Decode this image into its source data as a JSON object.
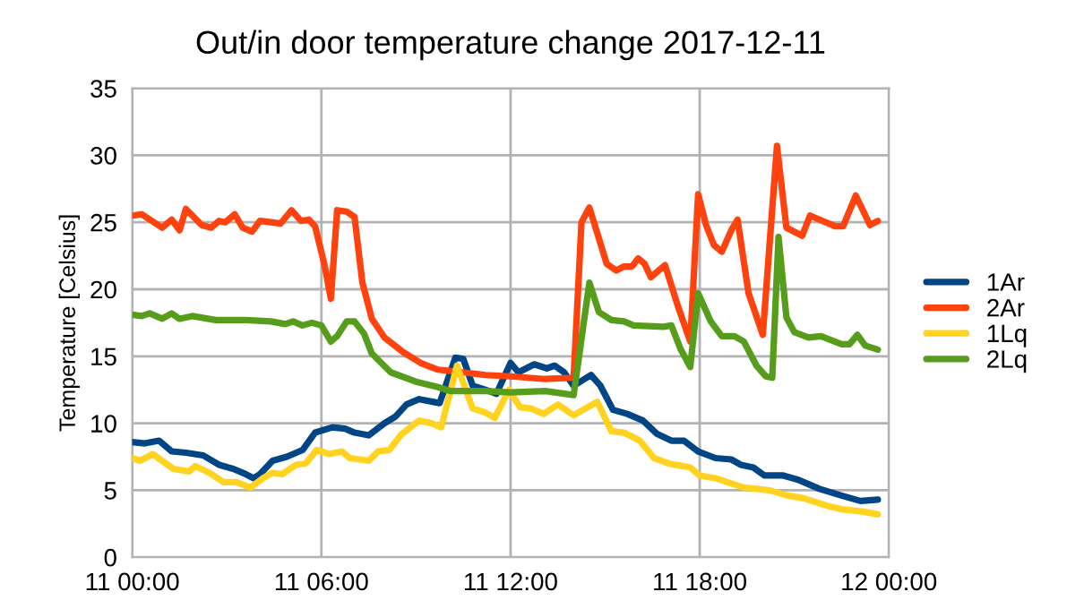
{
  "chart_data": {
    "type": "line",
    "title": "Out/in door temperature change 2017-12-11",
    "ylabel": "Temperature [Celsius]",
    "xlim": [
      "2017-12-11T00:00",
      "2017-12-12T00:00"
    ],
    "xticks": [
      {
        "value": "2017-12-11T00:00",
        "label": "11 00:00"
      },
      {
        "value": "2017-12-11T06:00",
        "label": "11 06:00"
      },
      {
        "value": "2017-12-11T12:00",
        "label": "11 12:00"
      },
      {
        "value": "2017-12-11T18:00",
        "label": "11 18:00"
      },
      {
        "value": "2017-12-12T00:00",
        "label": "12 00:00"
      }
    ],
    "ylim": [
      0,
      35
    ],
    "yticks": [
      0,
      5,
      10,
      15,
      20,
      25,
      30,
      35
    ],
    "grid": true,
    "legend": "right",
    "marker": "none",
    "line_style": "solid",
    "series": [
      {
        "name": "1Ar",
        "color": "#004586",
        "x": [
          "2017-12-11T00:00",
          "2017-12-11T00:24",
          "2017-12-11T00:51",
          "2017-12-11T01:15",
          "2017-12-11T01:42",
          "2017-12-11T02:15",
          "2017-12-11T02:45",
          "2017-12-11T03:12",
          "2017-12-11T03:36",
          "2017-12-11T03:51",
          "2017-12-11T04:03",
          "2017-12-11T04:27",
          "2017-12-11T04:54",
          "2017-12-11T05:24",
          "2017-12-11T05:48",
          "2017-12-11T06:21",
          "2017-12-11T06:45",
          "2017-12-11T07:03",
          "2017-12-11T07:30",
          "2017-12-11T08:00",
          "2017-12-11T08:21",
          "2017-12-11T08:42",
          "2017-12-11T09:06",
          "2017-12-11T09:45",
          "2017-12-11T10:15",
          "2017-12-11T10:30",
          "2017-12-11T10:48",
          "2017-12-11T11:12",
          "2017-12-11T11:33",
          "2017-12-11T12:00",
          "2017-12-11T12:15",
          "2017-12-11T12:45",
          "2017-12-11T13:09",
          "2017-12-11T13:24",
          "2017-12-11T13:42",
          "2017-12-11T14:00",
          "2017-12-11T14:33",
          "2017-12-11T14:51",
          "2017-12-11T15:15",
          "2017-12-11T15:42",
          "2017-12-11T16:12",
          "2017-12-11T16:39",
          "2017-12-11T17:06",
          "2017-12-11T17:30",
          "2017-12-11T17:57",
          "2017-12-11T18:30",
          "2017-12-11T19:00",
          "2017-12-11T19:18",
          "2017-12-11T19:42",
          "2017-12-11T20:03",
          "2017-12-11T20:39",
          "2017-12-11T21:06",
          "2017-12-11T21:48",
          "2017-12-11T22:30",
          "2017-12-11T23:06",
          "2017-12-11T23:39"
        ],
        "values": [
          8.6,
          8.5,
          8.7,
          7.9,
          7.8,
          7.6,
          6.9,
          6.6,
          6.2,
          5.9,
          6.2,
          7.2,
          7.5,
          8.0,
          9.3,
          9.7,
          9.6,
          9.3,
          9.1,
          10.0,
          10.5,
          11.4,
          11.8,
          11.5,
          14.9,
          14.8,
          12.8,
          12.5,
          12.2,
          14.5,
          13.8,
          14.4,
          14.1,
          14.3,
          13.8,
          12.8,
          13.6,
          12.8,
          11.0,
          10.7,
          10.2,
          9.2,
          8.7,
          8.7,
          7.9,
          7.4,
          7.3,
          6.9,
          6.7,
          6.1,
          6.1,
          5.8,
          5.1,
          4.6,
          4.2,
          4.3
        ]
      },
      {
        "name": "2Ar",
        "color": "#ff420e",
        "x": [
          "2017-12-11T00:00",
          "2017-12-11T00:18",
          "2017-12-11T00:57",
          "2017-12-11T01:15",
          "2017-12-11T01:30",
          "2017-12-11T01:42",
          "2017-12-11T02:12",
          "2017-12-11T02:30",
          "2017-12-11T02:45",
          "2017-12-11T02:57",
          "2017-12-11T03:15",
          "2017-12-11T03:30",
          "2017-12-11T03:48",
          "2017-12-11T04:03",
          "2017-12-11T04:24",
          "2017-12-11T04:42",
          "2017-12-11T05:03",
          "2017-12-11T05:21",
          "2017-12-11T05:36",
          "2017-12-11T05:48",
          "2017-12-11T06:06",
          "2017-12-11T06:18",
          "2017-12-11T06:30",
          "2017-12-11T06:48",
          "2017-12-11T07:03",
          "2017-12-11T07:18",
          "2017-12-11T07:36",
          "2017-12-11T08:00",
          "2017-12-11T08:36",
          "2017-12-11T09:09",
          "2017-12-11T09:42",
          "2017-12-11T10:30",
          "2017-12-11T11:12",
          "2017-12-11T12:00",
          "2017-12-11T13:06",
          "2017-12-11T14:00",
          "2017-12-11T14:15",
          "2017-12-11T14:30",
          "2017-12-11T15:03",
          "2017-12-11T15:21",
          "2017-12-11T15:36",
          "2017-12-11T15:51",
          "2017-12-11T16:03",
          "2017-12-11T16:15",
          "2017-12-11T16:27",
          "2017-12-11T16:54",
          "2017-12-11T17:18",
          "2017-12-11T17:42",
          "2017-12-11T17:57",
          "2017-12-11T18:12",
          "2017-12-11T18:27",
          "2017-12-11T18:42",
          "2017-12-11T19:00",
          "2017-12-11T19:12",
          "2017-12-11T19:33",
          "2017-12-11T20:00",
          "2017-12-11T20:27",
          "2017-12-11T20:45",
          "2017-12-11T21:15",
          "2017-12-11T21:30",
          "2017-12-11T21:54",
          "2017-12-11T22:18",
          "2017-12-11T22:33",
          "2017-12-11T22:57",
          "2017-12-11T23:24",
          "2017-12-11T23:39"
        ],
        "values": [
          25.5,
          25.6,
          24.6,
          25.2,
          24.4,
          26.0,
          24.8,
          24.6,
          25.1,
          25.0,
          25.6,
          24.6,
          24.3,
          25.1,
          25.0,
          24.9,
          25.9,
          25.1,
          25.2,
          24.7,
          21.8,
          19.3,
          25.9,
          25.8,
          25.4,
          20.5,
          17.8,
          16.4,
          15.3,
          14.5,
          14.0,
          13.8,
          13.6,
          13.5,
          13.3,
          13.4,
          25.0,
          26.1,
          21.9,
          21.4,
          21.7,
          21.7,
          22.3,
          21.9,
          20.9,
          21.8,
          18.8,
          16.1,
          27.1,
          24.8,
          23.3,
          22.8,
          24.4,
          25.2,
          19.7,
          16.6,
          30.7,
          24.6,
          24.0,
          25.5,
          25.1,
          24.7,
          24.7,
          27.0,
          24.8,
          25.1
        ]
      },
      {
        "name": "1Lq",
        "color": "#ffd320",
        "x": [
          "2017-12-11T00:00",
          "2017-12-11T00:15",
          "2017-12-11T00:39",
          "2017-12-11T00:57",
          "2017-12-11T01:18",
          "2017-12-11T01:48",
          "2017-12-11T02:00",
          "2017-12-11T02:27",
          "2017-12-11T02:54",
          "2017-12-11T03:18",
          "2017-12-11T03:45",
          "2017-12-11T04:09",
          "2017-12-11T04:27",
          "2017-12-11T04:45",
          "2017-12-11T05:12",
          "2017-12-11T05:30",
          "2017-12-11T05:51",
          "2017-12-11T06:15",
          "2017-12-11T06:39",
          "2017-12-11T06:54",
          "2017-12-11T07:30",
          "2017-12-11T07:48",
          "2017-12-11T08:09",
          "2017-12-11T08:33",
          "2017-12-11T09:06",
          "2017-12-11T09:30",
          "2017-12-11T09:48",
          "2017-12-11T10:18",
          "2017-12-11T10:48",
          "2017-12-11T11:12",
          "2017-12-11T11:30",
          "2017-12-11T11:57",
          "2017-12-11T12:18",
          "2017-12-11T12:39",
          "2017-12-11T13:03",
          "2017-12-11T13:30",
          "2017-12-11T14:00",
          "2017-12-11T14:18",
          "2017-12-11T14:45",
          "2017-12-11T15:12",
          "2017-12-11T15:36",
          "2017-12-11T16:06",
          "2017-12-11T16:33",
          "2017-12-11T17:00",
          "2017-12-11T17:42",
          "2017-12-11T18:00",
          "2017-12-11T18:30",
          "2017-12-11T19:00",
          "2017-12-11T19:24",
          "2017-12-11T20:12",
          "2017-12-11T20:48",
          "2017-12-11T21:18",
          "2017-12-11T22:06",
          "2017-12-11T22:27",
          "2017-12-11T23:12",
          "2017-12-11T23:39"
        ],
        "values": [
          7.4,
          7.2,
          7.7,
          7.2,
          6.6,
          6.4,
          6.8,
          6.3,
          5.6,
          5.6,
          5.2,
          5.9,
          6.3,
          6.2,
          6.9,
          7.0,
          8.0,
          7.7,
          7.9,
          7.4,
          7.2,
          7.9,
          8.0,
          9.2,
          10.2,
          10.0,
          9.7,
          14.3,
          11.1,
          10.8,
          10.4,
          12.5,
          11.2,
          11.1,
          10.7,
          11.4,
          10.6,
          11.0,
          11.6,
          9.4,
          9.3,
          8.7,
          7.4,
          7.0,
          6.7,
          6.1,
          5.9,
          5.5,
          5.2,
          5.0,
          4.6,
          4.4,
          3.8,
          3.6,
          3.4,
          3.2
        ]
      },
      {
        "name": "2Lq",
        "color": "#579d1c",
        "x": [
          "2017-12-11T00:00",
          "2017-12-11T00:18",
          "2017-12-11T00:33",
          "2017-12-11T00:57",
          "2017-12-11T01:15",
          "2017-12-11T01:30",
          "2017-12-11T01:54",
          "2017-12-11T02:39",
          "2017-12-11T03:36",
          "2017-12-11T04:24",
          "2017-12-11T04:51",
          "2017-12-11T05:06",
          "2017-12-11T05:24",
          "2017-12-11T05:42",
          "2017-12-11T06:00",
          "2017-12-11T06:18",
          "2017-12-11T06:30",
          "2017-12-11T06:48",
          "2017-12-11T07:03",
          "2017-12-11T07:21",
          "2017-12-11T07:36",
          "2017-12-11T08:12",
          "2017-12-11T09:00",
          "2017-12-11T09:42",
          "2017-12-11T10:06",
          "2017-12-11T11:12",
          "2017-12-11T12:00",
          "2017-12-11T13:06",
          "2017-12-11T14:00",
          "2017-12-11T14:30",
          "2017-12-11T14:48",
          "2017-12-11T15:12",
          "2017-12-11T15:36",
          "2017-12-11T15:54",
          "2017-12-11T16:51",
          "2017-12-11T17:06",
          "2017-12-11T17:24",
          "2017-12-11T17:42",
          "2017-12-11T17:57",
          "2017-12-11T18:21",
          "2017-12-11T18:42",
          "2017-12-11T19:06",
          "2017-12-11T19:24",
          "2017-12-11T19:48",
          "2017-12-11T20:06",
          "2017-12-11T20:18",
          "2017-12-11T20:30",
          "2017-12-11T20:45",
          "2017-12-11T21:00",
          "2017-12-11T21:27",
          "2017-12-11T21:51",
          "2017-12-11T22:30",
          "2017-12-11T22:45",
          "2017-12-11T23:00",
          "2017-12-11T23:15",
          "2017-12-11T23:39"
        ],
        "values": [
          18.1,
          18.0,
          18.2,
          17.8,
          18.2,
          17.8,
          18.0,
          17.7,
          17.7,
          17.6,
          17.4,
          17.6,
          17.3,
          17.5,
          17.3,
          16.1,
          16.5,
          17.6,
          17.6,
          16.7,
          15.2,
          13.8,
          13.1,
          12.7,
          12.4,
          12.4,
          12.3,
          12.4,
          12.1,
          20.5,
          18.3,
          17.7,
          17.6,
          17.3,
          17.2,
          17.3,
          15.5,
          14.2,
          19.7,
          17.6,
          16.5,
          16.5,
          16.1,
          14.3,
          13.5,
          13.4,
          23.9,
          17.9,
          16.8,
          16.4,
          16.5,
          15.9,
          15.9,
          16.6,
          15.8,
          15.5
        ]
      }
    ]
  }
}
